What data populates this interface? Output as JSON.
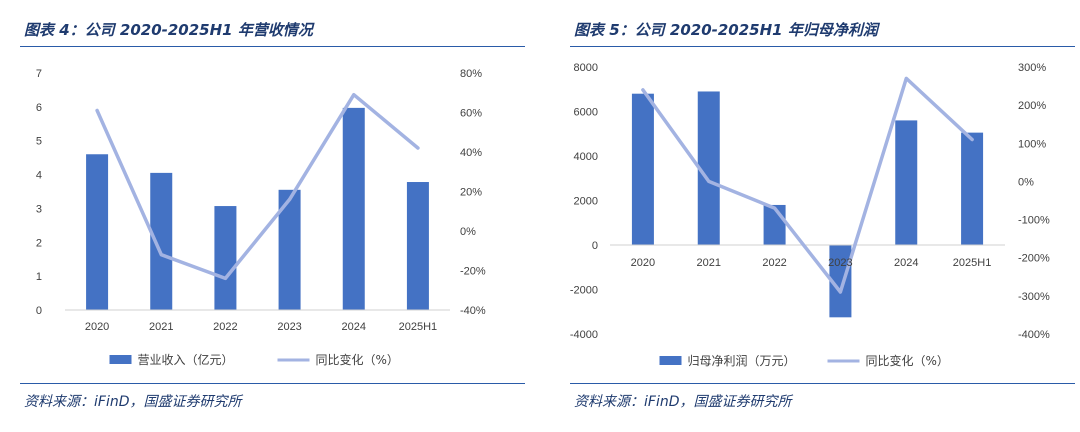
{
  "charts": [
    {
      "figure_title": "图表 4：公司 2020-2025H1 年营收情况",
      "source": "资料来源：iFinD，国盛证券研究所",
      "colors": {
        "bar": "#4472c4",
        "line": "#a3b3e2"
      },
      "chart_data": {
        "type": "bar",
        "categories": [
          "2020",
          "2021",
          "2022",
          "2023",
          "2024",
          "2025H1"
        ],
        "series": [
          {
            "name": "营业收入（亿元）",
            "type": "bar",
            "axis": "left",
            "values": [
              4.6,
              4.05,
              3.07,
              3.55,
              5.97,
              3.78
            ]
          },
          {
            "name": "同比变化（%）",
            "type": "line",
            "axis": "right",
            "values": [
              61,
              -12,
              -24,
              16,
              69,
              42
            ]
          }
        ],
        "y_left": {
          "min": 0,
          "max": 7,
          "ticks": [
            "0",
            "1",
            "2",
            "3",
            "4",
            "5",
            "6",
            "7"
          ]
        },
        "y_right": {
          "min": -40,
          "max": 80,
          "ticks": [
            "-40%",
            "-20%",
            "0%",
            "20%",
            "40%",
            "60%",
            "80%"
          ]
        },
        "legend": "bottom",
        "grid": false
      }
    },
    {
      "figure_title": "图表 5：公司 2020-2025H1 年归母净利润",
      "source": "资料来源：iFinD，国盛证券研究所",
      "colors": {
        "bar": "#4472c4",
        "line": "#a3b3e2"
      },
      "chart_data": {
        "type": "bar",
        "categories": [
          "2020",
          "2021",
          "2022",
          "2023",
          "2024",
          "2025H1"
        ],
        "series": [
          {
            "name": "归母净利润（万元）",
            "type": "bar",
            "axis": "left",
            "values": [
              6800,
              6900,
              1800,
              -3250,
              5600,
              5050
            ]
          },
          {
            "name": "同比变化（%）",
            "type": "line",
            "axis": "right",
            "values": [
              240,
              0,
              -70,
              -290,
              270,
              110
            ]
          }
        ],
        "y_left": {
          "min": -4000,
          "max": 8000,
          "ticks": [
            "-4000",
            "-2000",
            "0",
            "2000",
            "4000",
            "6000",
            "8000"
          ]
        },
        "y_right": {
          "min": -400,
          "max": 300,
          "ticks": [
            "-400%",
            "-300%",
            "-200%",
            "-100%",
            "0%",
            "100%",
            "200%",
            "300%"
          ]
        },
        "legend": "bottom",
        "grid": false
      }
    }
  ]
}
